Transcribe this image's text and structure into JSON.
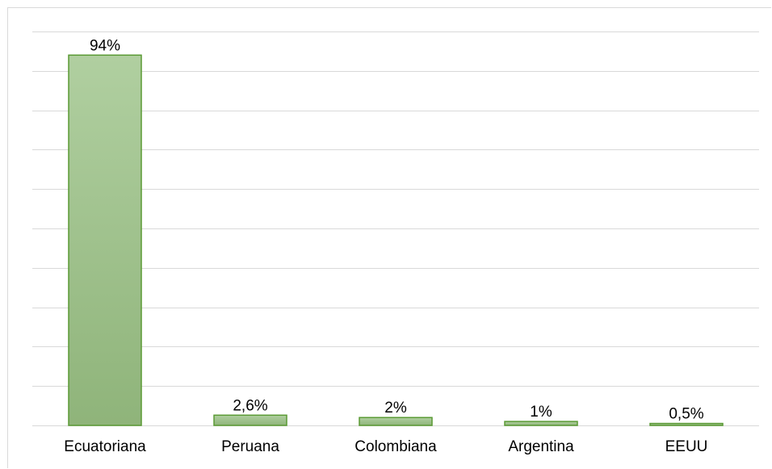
{
  "chart_data": {
    "type": "bar",
    "categories": [
      "Ecuatoriana",
      "Peruana",
      "Colombiana",
      "Argentina",
      "EEUU"
    ],
    "values": [
      94,
      2.6,
      2,
      1,
      0.5
    ],
    "data_labels": [
      "94%",
      "2,6%",
      "2%",
      "1%",
      "0,5%"
    ],
    "ylim": [
      0,
      100
    ],
    "grid": true,
    "legend": "none",
    "colors": {
      "bar_top": "#b0cfa0",
      "bar_bottom": "#8fb47a",
      "bar_stroke": "#5a9a34",
      "gridline": "#d9d9d9",
      "axis": "#d9d9d9"
    }
  }
}
